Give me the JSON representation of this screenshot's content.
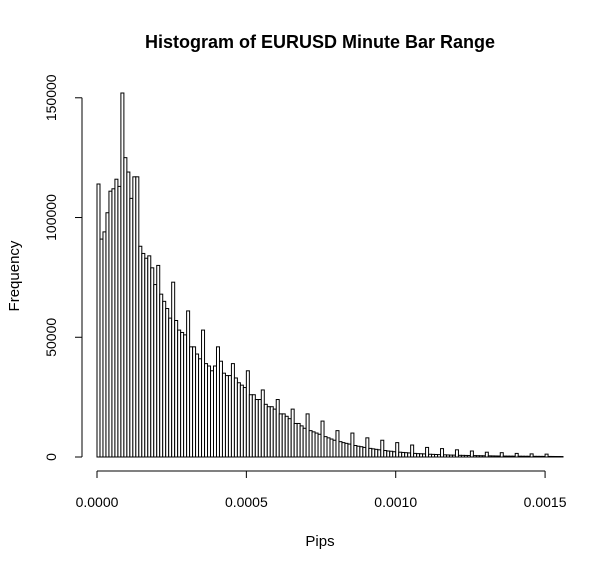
{
  "chart_data": {
    "type": "bar",
    "title": "Histogram of EURUSD Minute Bar Range",
    "xlabel": "Pips",
    "ylabel": "Frequency",
    "bin_width": 1e-05,
    "xlim": [
      0,
      0.00156
    ],
    "ylim": [
      0,
      152000
    ],
    "x_ticks": [
      {
        "value": 0,
        "label": "0.0000"
      },
      {
        "value": 0.0005,
        "label": "0.0005"
      },
      {
        "value": 0.001,
        "label": "0.0010"
      },
      {
        "value": 0.0015,
        "label": "0.0015"
      }
    ],
    "y_ticks": [
      {
        "value": 0,
        "label": "0"
      },
      {
        "value": 50000,
        "label": "50000"
      },
      {
        "value": 100000,
        "label": "100000"
      },
      {
        "value": 150000,
        "label": "150000"
      }
    ],
    "values": [
      114000,
      91000,
      94000,
      102000,
      111000,
      112000,
      116000,
      113000,
      152000,
      125000,
      119000,
      108000,
      117000,
      99000,
      88000,
      85000,
      83000,
      84000,
      79000,
      72000,
      80000,
      68000,
      65000,
      62000,
      58000,
      56000,
      57000,
      53000,
      52000,
      51000,
      48000,
      46000,
      46000,
      43000,
      41000,
      41000,
      39000,
      38000,
      36000,
      38000,
      37000,
      40000,
      35000,
      34000,
      34000,
      33000,
      33000,
      31000,
      30000,
      29000,
      28000,
      26000,
      26000,
      24000,
      24000,
      23000,
      22000,
      21000,
      21000,
      20000,
      19000,
      18000,
      18000,
      17000,
      16000,
      15000,
      14000,
      14000,
      13000,
      12000,
      12000,
      11000,
      10500,
      10000,
      9500,
      9000,
      8500,
      8000,
      7500,
      7000,
      6800,
      6400,
      6000,
      5700,
      5400,
      5100,
      4800,
      4500,
      4300,
      4000,
      3800,
      3600,
      3400,
      3200,
      3000,
      2800,
      2700,
      2500,
      2400,
      2200,
      2100,
      2000,
      1900,
      1800,
      1700,
      1600,
      1500,
      1400,
      1350,
      1300,
      1200,
      1150,
      1100,
      1050,
      1000,
      950,
      900,
      850,
      800,
      780,
      750,
      700,
      680,
      650,
      620,
      600,
      580,
      550,
      530,
      510,
      490,
      470,
      450,
      430,
      410,
      400,
      380,
      370,
      360,
      350,
      340,
      330,
      320,
      310,
      300,
      290,
      280,
      270,
      260,
      250,
      240,
      230,
      220,
      210,
      200,
      190
    ],
    "spikes": [
      {
        "bin": 8,
        "value": 152000
      },
      {
        "bin": 9,
        "value": 125000
      },
      {
        "bin": 13,
        "value": 117000
      },
      {
        "bin": 20,
        "value": 80000
      },
      {
        "bin": 25,
        "value": 73000
      },
      {
        "bin": 30,
        "value": 61000
      },
      {
        "bin": 35,
        "value": 53000
      },
      {
        "bin": 40,
        "value": 46000
      },
      {
        "bin": 45,
        "value": 39000
      },
      {
        "bin": 50,
        "value": 36000
      },
      {
        "bin": 55,
        "value": 28000
      },
      {
        "bin": 60,
        "value": 24000
      },
      {
        "bin": 65,
        "value": 20000
      },
      {
        "bin": 70,
        "value": 18000
      },
      {
        "bin": 75,
        "value": 15000
      },
      {
        "bin": 80,
        "value": 11000
      },
      {
        "bin": 85,
        "value": 10000
      },
      {
        "bin": 90,
        "value": 8000
      },
      {
        "bin": 95,
        "value": 7000
      },
      {
        "bin": 100,
        "value": 6000
      },
      {
        "bin": 105,
        "value": 5000
      },
      {
        "bin": 110,
        "value": 4000
      },
      {
        "bin": 115,
        "value": 3500
      },
      {
        "bin": 120,
        "value": 3000
      },
      {
        "bin": 125,
        "value": 2500
      },
      {
        "bin": 130,
        "value": 2000
      },
      {
        "bin": 135,
        "value": 1800
      },
      {
        "bin": 140,
        "value": 1500
      },
      {
        "bin": 145,
        "value": 1300
      },
      {
        "bin": 150,
        "value": 1200
      }
    ]
  }
}
